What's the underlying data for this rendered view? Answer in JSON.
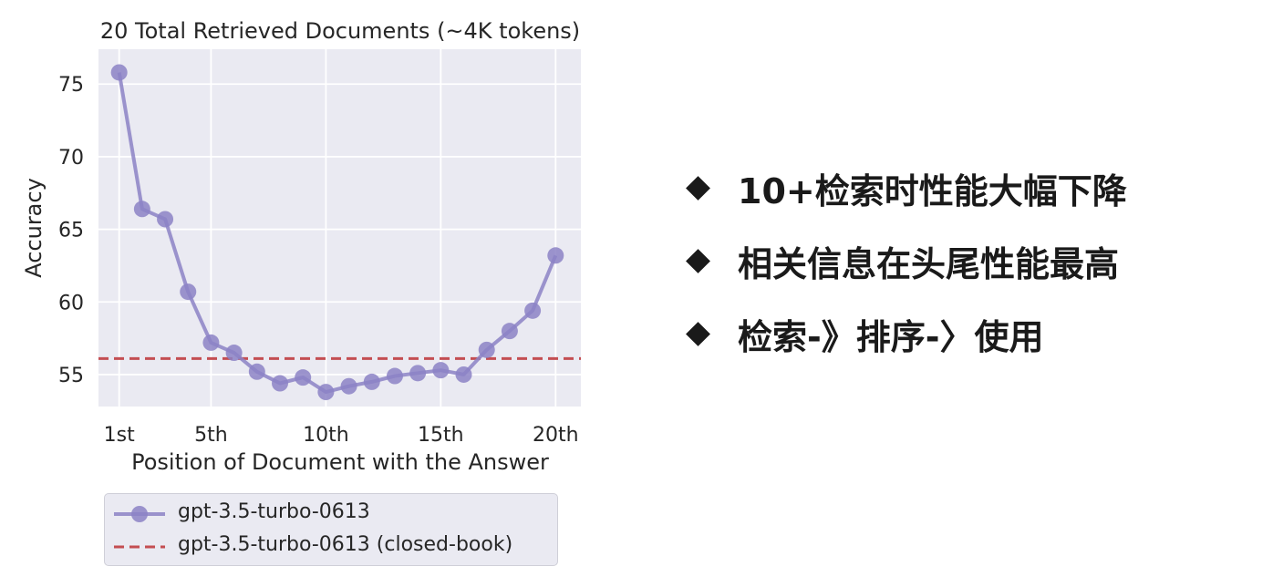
{
  "chart_data": {
    "type": "line",
    "title": "20 Total Retrieved Documents (~4K tokens)",
    "xlabel": "Position of Document with the Answer",
    "ylabel": "Accuracy",
    "x": [
      1,
      2,
      3,
      4,
      5,
      6,
      7,
      8,
      9,
      10,
      11,
      12,
      13,
      14,
      15,
      16,
      17,
      18,
      19,
      20
    ],
    "x_ticks": [
      1,
      5,
      10,
      15,
      20
    ],
    "x_tick_labels": [
      "1st",
      "5th",
      "10th",
      "15th",
      "20th"
    ],
    "y_ticks": [
      55,
      60,
      65,
      70,
      75
    ],
    "y_tick_labels": [
      "55",
      "60",
      "65",
      "70",
      "75"
    ],
    "xlim": [
      0.1,
      21.1
    ],
    "ylim": [
      52.8,
      77.4
    ],
    "grid": true,
    "legend_position": "below",
    "series": [
      {
        "name": "gpt-3.5-turbo-0613",
        "color": "#8c82c6",
        "marker": "circle",
        "values": [
          75.8,
          66.4,
          65.7,
          60.7,
          57.2,
          56.5,
          55.2,
          54.4,
          54.8,
          53.8,
          54.2,
          54.5,
          54.9,
          55.1,
          55.3,
          55.0,
          56.7,
          58.0,
          59.4,
          63.2
        ]
      },
      {
        "name": "gpt-3.5-turbo-0613 (closed-book)",
        "color": "#c44e52",
        "style": "dashed",
        "constant": 56.1
      }
    ]
  },
  "bullets": [
    {
      "text": "10+检索时性能大幅下降"
    },
    {
      "text": "相关信息在头尾性能最高"
    },
    {
      "text": "检索-》排序-〉使用"
    }
  ]
}
